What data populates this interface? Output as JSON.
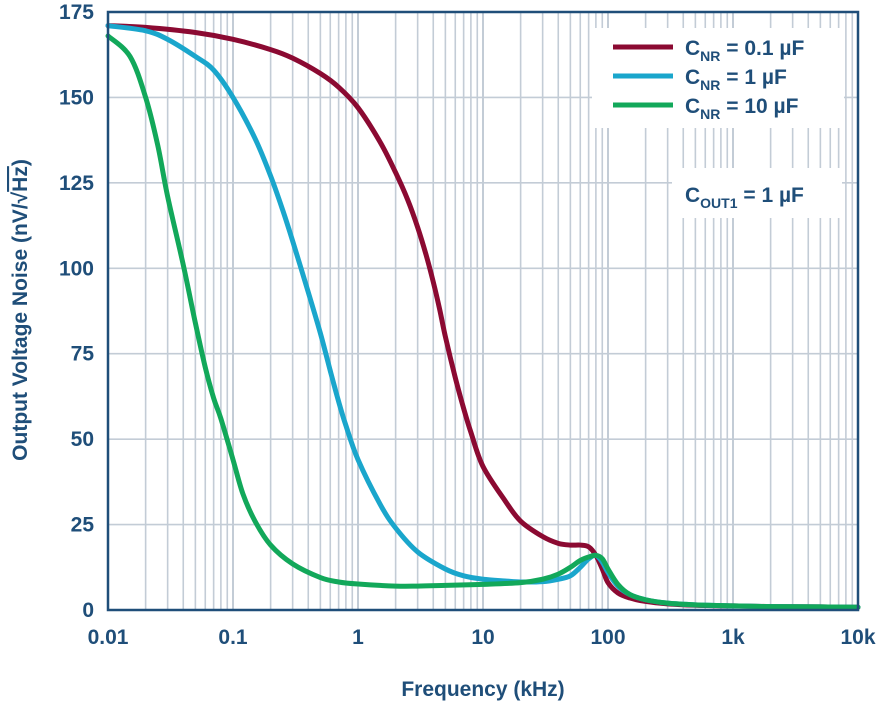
{
  "chart_data": {
    "type": "line",
    "xlabel": "Frequency (kHz)",
    "ylabel": "Output Voltage Noise (nV/√Hz)",
    "ylabel_main": "Output Voltage Noise (nV/",
    "ylabel_root": "√",
    "ylabel_unit": "Hz",
    "ylabel_close": ")",
    "x_scale": "log",
    "xlim": [
      0.01,
      10000
    ],
    "ylim": [
      0,
      175
    ],
    "grid": true,
    "legend_position": "top-right",
    "x_ticks": [
      {
        "value": 0.01,
        "label": "0.01"
      },
      {
        "value": 0.1,
        "label": "0.1"
      },
      {
        "value": 1,
        "label": "1"
      },
      {
        "value": 10,
        "label": "10"
      },
      {
        "value": 100,
        "label": "100"
      },
      {
        "value": 1000,
        "label": "1k"
      },
      {
        "value": 10000,
        "label": "10k"
      }
    ],
    "y_ticks": [
      {
        "value": 0,
        "label": "0"
      },
      {
        "value": 25,
        "label": "25"
      },
      {
        "value": 50,
        "label": "50"
      },
      {
        "value": 75,
        "label": "75"
      },
      {
        "value": 100,
        "label": "100"
      },
      {
        "value": 125,
        "label": "125"
      },
      {
        "value": 150,
        "label": "150"
      },
      {
        "value": 175,
        "label": "175"
      }
    ],
    "annotation": {
      "main": "C",
      "sub": "OUT1",
      "rest": " = 1 µF"
    },
    "series": [
      {
        "name": "CNR = 0.1 µF",
        "legend_main": "C",
        "legend_sub": "NR",
        "legend_rest": " = 0.1 µF",
        "color": "#8b0a32",
        "x": [
          0.01,
          0.02,
          0.05,
          0.1,
          0.2,
          0.3,
          0.5,
          0.7,
          1,
          1.5,
          2,
          2.5,
          3,
          3.5,
          4,
          4.5,
          5,
          6,
          7,
          8,
          10,
          15,
          20,
          30,
          40,
          50,
          60,
          70,
          80,
          90,
          100,
          120,
          150,
          200,
          300,
          500,
          1000,
          2000,
          5000,
          10000
        ],
        "y": [
          171,
          170.5,
          169,
          167,
          164,
          161.5,
          157,
          153,
          147,
          137,
          128,
          120,
          112,
          104,
          96,
          88,
          80,
          68,
          59,
          52,
          42,
          32,
          26,
          21.5,
          19.5,
          19,
          19,
          18.5,
          16,
          12,
          8,
          5,
          3.5,
          2.5,
          1.8,
          1.4,
          1.2,
          1.0,
          0.9,
          0.8
        ]
      },
      {
        "name": "CNR = 1 µF",
        "legend_main": "C",
        "legend_sub": "NR",
        "legend_rest": " = 1 µF",
        "color": "#1aa6cc",
        "x": [
          0.01,
          0.02,
          0.03,
          0.05,
          0.07,
          0.1,
          0.15,
          0.2,
          0.25,
          0.3,
          0.4,
          0.5,
          0.6,
          0.7,
          0.8,
          1,
          1.5,
          2,
          3,
          5,
          7,
          10,
          15,
          20,
          30,
          40,
          50,
          60,
          70,
          80,
          90,
          100,
          120,
          150,
          200,
          300,
          500,
          1000,
          2000,
          5000,
          10000
        ],
        "y": [
          171,
          169.5,
          167,
          162,
          158,
          150,
          138,
          127,
          117,
          108,
          93,
          81,
          70,
          61,
          54,
          44,
          31,
          24,
          17,
          12,
          10,
          9,
          8.5,
          8.2,
          8.3,
          9,
          10,
          12.5,
          15,
          16,
          14,
          11,
          7,
          4.5,
          3,
          2,
          1.5,
          1.2,
          1.0,
          0.9,
          0.8
        ]
      },
      {
        "name": "CNR = 10 µF",
        "legend_main": "C",
        "legend_sub": "NR",
        "legend_rest": " = 10 µF",
        "color": "#12a85a",
        "x": [
          0.01,
          0.015,
          0.02,
          0.025,
          0.03,
          0.04,
          0.05,
          0.06,
          0.07,
          0.08,
          0.1,
          0.12,
          0.15,
          0.2,
          0.3,
          0.5,
          0.7,
          1,
          2,
          3,
          5,
          10,
          20,
          30,
          40,
          50,
          60,
          70,
          80,
          90,
          100,
          120,
          150,
          200,
          300,
          500,
          1000,
          2000,
          5000,
          10000
        ],
        "y": [
          168,
          162,
          150,
          136,
          121,
          101,
          84,
          71,
          62,
          56,
          44,
          34,
          26,
          19,
          13.5,
          9.5,
          8.2,
          7.6,
          7,
          7,
          7.2,
          7.5,
          8,
          9,
          10.5,
          12.5,
          14.5,
          15.5,
          16,
          15,
          12,
          7.5,
          4.5,
          3,
          2,
          1.5,
          1.2,
          1.0,
          0.9,
          0.8
        ]
      }
    ]
  }
}
